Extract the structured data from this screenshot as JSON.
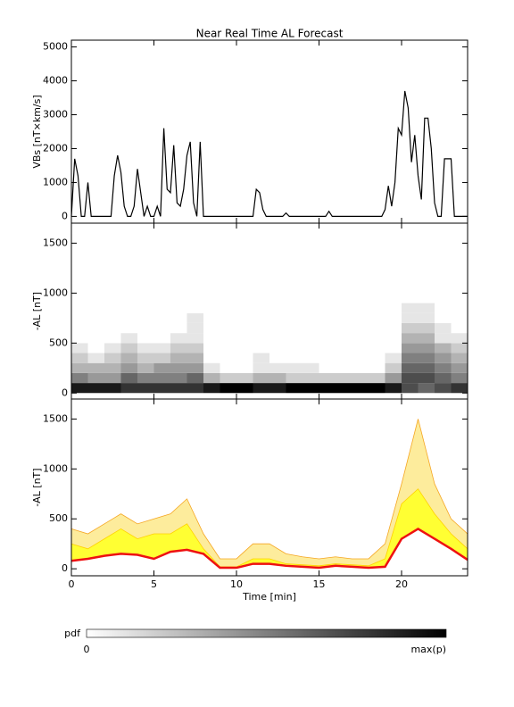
{
  "chart_data": [
    {
      "type": "line",
      "title": "Near Real Time AL Forecast",
      "ylabel": "VBs [nT×km/s]",
      "color": "#000000",
      "xlim": [
        0,
        24
      ],
      "xticks": [
        0,
        5,
        10,
        15,
        20
      ],
      "ylim": [
        -200,
        5200
      ],
      "yticks": [
        0,
        1000,
        2000,
        3000,
        4000,
        5000
      ],
      "x": [
        0,
        0.2,
        0.4,
        0.6,
        0.8,
        1,
        1.2,
        1.4,
        1.6,
        1.8,
        2,
        2.2,
        2.4,
        2.6,
        2.8,
        3,
        3.2,
        3.4,
        3.6,
        3.8,
        4,
        4.2,
        4.4,
        4.6,
        4.8,
        5,
        5.2,
        5.4,
        5.6,
        5.8,
        6,
        6.2,
        6.4,
        6.6,
        6.8,
        7,
        7.2,
        7.4,
        7.6,
        7.8,
        8,
        8.2,
        8.4,
        8.6,
        8.8,
        9,
        9.2,
        9.4,
        9.6,
        9.8,
        10,
        10.2,
        10.4,
        10.6,
        10.8,
        11,
        11.2,
        11.4,
        11.6,
        11.8,
        12,
        12.2,
        12.4,
        12.6,
        12.8,
        13,
        13.2,
        13.4,
        13.6,
        13.8,
        14,
        14.2,
        14.4,
        14.6,
        14.8,
        15,
        15.2,
        15.4,
        15.6,
        15.8,
        16,
        16.2,
        16.4,
        16.6,
        16.8,
        17,
        17.2,
        17.4,
        17.6,
        17.8,
        18,
        18.2,
        18.4,
        18.6,
        18.8,
        19,
        19.2,
        19.4,
        19.6,
        19.8,
        20,
        20.2,
        20.4,
        20.6,
        20.8,
        21,
        21.2,
        21.4,
        21.6,
        21.8,
        22,
        22.2,
        22.4,
        22.6,
        22.8,
        23,
        23.2,
        23.4,
        23.6,
        23.8,
        24
      ],
      "values": [
        0,
        1700,
        1200,
        0,
        0,
        1000,
        0,
        0,
        0,
        0,
        0,
        0,
        0,
        1200,
        1800,
        1300,
        300,
        0,
        0,
        300,
        1400,
        700,
        0,
        300,
        0,
        0,
        300,
        0,
        2600,
        800,
        700,
        2100,
        400,
        300,
        800,
        1800,
        2200,
        400,
        0,
        2200,
        0,
        0,
        0,
        0,
        0,
        0,
        0,
        0,
        0,
        0,
        0,
        0,
        0,
        0,
        0,
        0,
        800,
        700,
        200,
        0,
        0,
        0,
        0,
        0,
        0,
        100,
        0,
        0,
        0,
        0,
        0,
        0,
        0,
        0,
        0,
        0,
        0,
        0,
        150,
        0,
        0,
        0,
        0,
        0,
        0,
        0,
        0,
        0,
        0,
        0,
        0,
        0,
        0,
        0,
        0,
        200,
        900,
        300,
        1000,
        2600,
        2400,
        3700,
        3200,
        1600,
        2400,
        1200,
        500,
        2900,
        2900,
        2000,
        400,
        0,
        0,
        1700,
        1700,
        1700,
        0,
        0,
        0,
        0,
        0
      ]
    },
    {
      "type": "heatmap",
      "ylabel": "-AL [nT]",
      "xlim": [
        0,
        24
      ],
      "xticks": [
        0,
        5,
        10,
        15,
        20
      ],
      "ylim": [
        -60,
        1700
      ],
      "yticks": [
        0,
        500,
        1000,
        1500
      ],
      "xbins": [
        0,
        1,
        2,
        3,
        4,
        5,
        6,
        7,
        8,
        9,
        10,
        11,
        12,
        13,
        14,
        15,
        16,
        17,
        18,
        19,
        20,
        21,
        22,
        23,
        24
      ],
      "ybins": [
        0,
        100,
        200,
        300,
        400,
        500,
        600,
        700,
        800,
        900
      ],
      "z": [
        [
          0.9,
          0.5,
          0.3,
          0.2,
          0.1,
          0,
          0,
          0,
          0
        ],
        [
          0.9,
          0.4,
          0.3,
          0.1,
          0,
          0,
          0,
          0,
          0
        ],
        [
          0.9,
          0.4,
          0.3,
          0.2,
          0.1,
          0,
          0,
          0,
          0
        ],
        [
          0.8,
          0.6,
          0.4,
          0.3,
          0.2,
          0.1,
          0,
          0,
          0
        ],
        [
          0.8,
          0.5,
          0.3,
          0.2,
          0.1,
          0,
          0,
          0,
          0
        ],
        [
          0.8,
          0.5,
          0.4,
          0.2,
          0.1,
          0,
          0,
          0,
          0
        ],
        [
          0.8,
          0.5,
          0.4,
          0.3,
          0.2,
          0.1,
          0,
          0,
          0
        ],
        [
          0.8,
          0.6,
          0.4,
          0.3,
          0.2,
          0.1,
          0.1,
          0.1,
          0
        ],
        [
          0.9,
          0.3,
          0.1,
          0,
          0,
          0,
          0,
          0,
          0
        ],
        [
          1,
          0.2,
          0,
          0,
          0,
          0,
          0,
          0,
          0
        ],
        [
          1,
          0.2,
          0,
          0,
          0,
          0,
          0,
          0,
          0
        ],
        [
          0.9,
          0.3,
          0.1,
          0.1,
          0,
          0,
          0,
          0,
          0
        ],
        [
          0.9,
          0.3,
          0.1,
          0,
          0,
          0,
          0,
          0,
          0
        ],
        [
          1,
          0.2,
          0.1,
          0,
          0,
          0,
          0,
          0,
          0
        ],
        [
          1,
          0.2,
          0.1,
          0,
          0,
          0,
          0,
          0,
          0
        ],
        [
          1,
          0.2,
          0,
          0,
          0,
          0,
          0,
          0,
          0
        ],
        [
          1,
          0.2,
          0,
          0,
          0,
          0,
          0,
          0,
          0
        ],
        [
          1,
          0.2,
          0,
          0,
          0,
          0,
          0,
          0,
          0
        ],
        [
          1,
          0.2,
          0,
          0,
          0,
          0,
          0,
          0,
          0
        ],
        [
          0.9,
          0.4,
          0.2,
          0.1,
          0,
          0,
          0,
          0,
          0
        ],
        [
          0.7,
          0.7,
          0.6,
          0.5,
          0.4,
          0.3,
          0.2,
          0.1,
          0.1
        ],
        [
          0.6,
          0.7,
          0.6,
          0.5,
          0.4,
          0.3,
          0.2,
          0.1,
          0.1
        ],
        [
          0.7,
          0.6,
          0.5,
          0.4,
          0.3,
          0.1,
          0.1,
          0,
          0
        ],
        [
          0.8,
          0.5,
          0.4,
          0.3,
          0.2,
          0.1,
          0,
          0,
          0
        ]
      ]
    },
    {
      "type": "band",
      "ylabel": "-AL [nT]",
      "xlabel": "Time [min]",
      "xlim": [
        0,
        24
      ],
      "xticks": [
        0,
        5,
        10,
        15,
        20
      ],
      "ylim": [
        -70,
        1700
      ],
      "yticks": [
        0,
        500,
        1000,
        1500
      ],
      "x": [
        0,
        1,
        2,
        3,
        4,
        5,
        6,
        7,
        8,
        9,
        10,
        11,
        12,
        13,
        14,
        15,
        16,
        17,
        18,
        19,
        20,
        21,
        22,
        23,
        24
      ],
      "bands": [
        {
          "color": "#fdec9c",
          "edge": "#f5a623",
          "lower": [
            80,
            100,
            130,
            150,
            140,
            100,
            170,
            190,
            150,
            10,
            10,
            50,
            50,
            30,
            20,
            10,
            30,
            20,
            10,
            20,
            300,
            400,
            300,
            200,
            90
          ],
          "upper": [
            400,
            350,
            450,
            550,
            450,
            500,
            550,
            700,
            350,
            100,
            100,
            250,
            250,
            150,
            120,
            100,
            120,
            100,
            100,
            250,
            850,
            1500,
            850,
            500,
            350
          ]
        },
        {
          "color": "#ffff33",
          "edge": "#ffd000",
          "lower": [
            80,
            100,
            130,
            150,
            140,
            100,
            170,
            190,
            150,
            10,
            10,
            50,
            50,
            30,
            20,
            10,
            30,
            20,
            10,
            20,
            300,
            400,
            300,
            200,
            90
          ],
          "upper": [
            250,
            200,
            300,
            400,
            300,
            350,
            350,
            450,
            200,
            20,
            20,
            100,
            100,
            50,
            40,
            30,
            50,
            40,
            30,
            100,
            650,
            800,
            550,
            350,
            200
          ]
        }
      ],
      "line": {
        "color": "#ee1111",
        "values": [
          80,
          100,
          130,
          150,
          140,
          100,
          170,
          190,
          150,
          10,
          10,
          50,
          50,
          30,
          20,
          10,
          30,
          20,
          10,
          20,
          300,
          400,
          300,
          200,
          90
        ]
      }
    }
  ],
  "colorbar": {
    "label": "pdf",
    "min_label": "0",
    "max_label": "max(p)"
  }
}
